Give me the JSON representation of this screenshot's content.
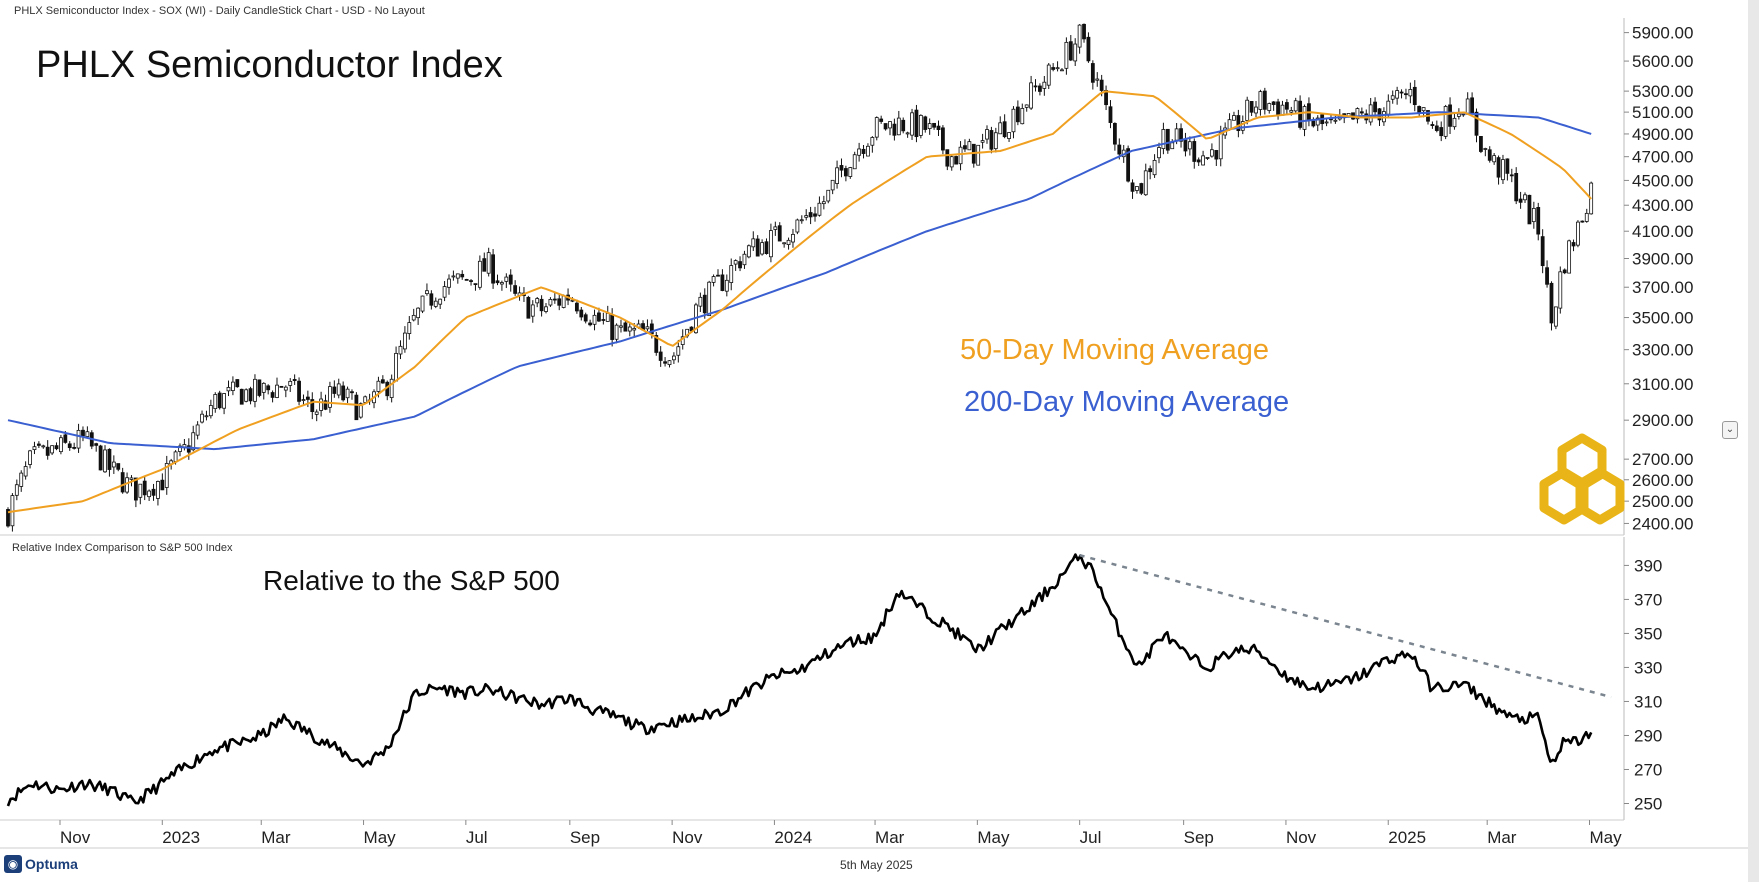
{
  "header": {
    "info": "PHLX Semiconductor Index - SOX (WI) - Daily CandleStick Chart - USD - No Layout",
    "title": "PHLX Semiconductor Index",
    "relative_panel_label": "Relative Index Comparison to S&P 500 Index",
    "relative_title": "Relative to the S&P 500"
  },
  "legend": {
    "ma50": "50-Day Moving Average",
    "ma200": "200-Day Moving Average"
  },
  "footer": {
    "date": "5th May 2025",
    "brand": "Optuma"
  },
  "colors": {
    "ma50": "#f0a020",
    "ma200": "#3a5fd0",
    "candles": "#111111",
    "relative": "#000000",
    "trendline": "#7a8590",
    "logo": "#e8b417"
  },
  "chart_data": [
    {
      "type": "candlestick",
      "title": "PHLX Semiconductor Index",
      "x_tick_labels": [
        "Nov",
        "2023",
        "Mar",
        "May",
        "Jul",
        "Sep",
        "Nov",
        "2024",
        "Mar",
        "May",
        "Jul",
        "Sep",
        "Nov",
        "2025",
        "Mar",
        "May"
      ],
      "y_tick_labels": [
        "5900.00",
        "5600.00",
        "5300.00",
        "5100.00",
        "4900.00",
        "4700.00",
        "4500.00",
        "4300.00",
        "4100.00",
        "3900.00",
        "3700.00",
        "3500.00",
        "3300.00",
        "3100.00",
        "2900.00",
        "2700.00",
        "2600.00",
        "2500.00",
        "2400.00"
      ],
      "y_scale": "log",
      "ylim": [
        2380,
        5950
      ],
      "series": [
        {
          "name": "SOX",
          "x": [
            "2022-10-01",
            "2022-10-15",
            "2022-11-01",
            "2022-11-15",
            "2022-12-01",
            "2022-12-15",
            "2023-01-01",
            "2023-01-15",
            "2023-02-01",
            "2023-02-15",
            "2023-03-01",
            "2023-03-15",
            "2023-04-01",
            "2023-04-15",
            "2023-05-01",
            "2023-05-15",
            "2023-06-01",
            "2023-06-15",
            "2023-07-01",
            "2023-07-15",
            "2023-08-01",
            "2023-08-15",
            "2023-09-01",
            "2023-09-15",
            "2023-10-01",
            "2023-10-15",
            "2023-11-01",
            "2023-11-15",
            "2023-12-01",
            "2023-12-15",
            "2024-01-01",
            "2024-01-15",
            "2024-02-01",
            "2024-02-15",
            "2024-03-01",
            "2024-03-15",
            "2024-04-01",
            "2024-04-15",
            "2024-05-01",
            "2024-05-15",
            "2024-06-01",
            "2024-06-15",
            "2024-07-01",
            "2024-07-10",
            "2024-07-20",
            "2024-08-05",
            "2024-08-20",
            "2024-09-01",
            "2024-09-15",
            "2024-10-01",
            "2024-10-15",
            "2024-11-01",
            "2024-11-15",
            "2024-12-01",
            "2024-12-15",
            "2025-01-01",
            "2025-01-15",
            "2025-01-27",
            "2025-02-01",
            "2025-02-15",
            "2025-03-01",
            "2025-03-15",
            "2025-04-01",
            "2025-04-08",
            "2025-04-15",
            "2025-04-25",
            "2025-05-02"
          ],
          "close": [
            2450,
            2700,
            2750,
            2800,
            2650,
            2550,
            2600,
            2750,
            3000,
            3050,
            3050,
            3100,
            2950,
            3050,
            2950,
            3100,
            3500,
            3700,
            3750,
            3850,
            3600,
            3550,
            3650,
            3500,
            3400,
            3400,
            3250,
            3550,
            3750,
            3950,
            4050,
            4150,
            4350,
            4700,
            4950,
            5000,
            4950,
            4700,
            4750,
            4950,
            5250,
            5500,
            5850,
            5450,
            4950,
            4400,
            4900,
            4800,
            4700,
            4950,
            5200,
            5150,
            5000,
            4950,
            5050,
            5150,
            5300,
            4950,
            5000,
            5200,
            4700,
            4500,
            4100,
            3450,
            3850,
            4150,
            4450
          ]
        },
        {
          "name": "50-Day Moving Average",
          "x": [
            "2022-10-01",
            "2022-11-15",
            "2023-01-01",
            "2023-02-15",
            "2023-04-01",
            "2023-05-01",
            "2023-06-01",
            "2023-07-01",
            "2023-08-15",
            "2023-10-01",
            "2023-11-01",
            "2023-12-01",
            "2024-01-01",
            "2024-02-15",
            "2024-04-01",
            "2024-05-15",
            "2024-06-15",
            "2024-07-15",
            "2024-08-15",
            "2024-09-15",
            "2024-10-15",
            "2024-11-15",
            "2024-12-15",
            "2025-01-15",
            "2025-02-15",
            "2025-03-15",
            "2025-04-15",
            "2025-05-02"
          ],
          "values": [
            2450,
            2500,
            2650,
            2850,
            3000,
            2980,
            3200,
            3500,
            3700,
            3500,
            3320,
            3550,
            3850,
            4300,
            4700,
            4750,
            4900,
            5300,
            5250,
            4850,
            5050,
            5100,
            5050,
            5050,
            5100,
            4900,
            4600,
            4350
          ]
        },
        {
          "name": "200-Day Moving Average",
          "x": [
            "2022-10-01",
            "2022-12-01",
            "2023-02-01",
            "2023-04-01",
            "2023-06-01",
            "2023-08-01",
            "2023-10-01",
            "2023-12-01",
            "2024-02-01",
            "2024-04-01",
            "2024-06-01",
            "2024-08-01",
            "2024-10-01",
            "2024-12-01",
            "2025-02-01",
            "2025-04-01",
            "2025-05-02"
          ],
          "values": [
            2900,
            2780,
            2750,
            2800,
            2920,
            3200,
            3350,
            3550,
            3800,
            4100,
            4350,
            4750,
            4950,
            5050,
            5100,
            5050,
            4900
          ]
        }
      ]
    },
    {
      "type": "line",
      "title": "Relative to the S&P 500",
      "x_tick_labels": [
        "Nov",
        "2023",
        "Mar",
        "May",
        "Jul",
        "Sep",
        "Nov",
        "2024",
        "Mar",
        "May",
        "Jul",
        "Sep",
        "Nov",
        "2025",
        "Mar",
        "May"
      ],
      "y_tick_labels": [
        "390",
        "370",
        "350",
        "330",
        "310",
        "290",
        "270",
        "250"
      ],
      "ylim": [
        245,
        402
      ],
      "series": [
        {
          "name": "Relative to the S&P 500",
          "x": [
            "2022-10-01",
            "2022-10-15",
            "2022-11-01",
            "2022-11-15",
            "2022-12-01",
            "2022-12-15",
            "2023-01-01",
            "2023-01-15",
            "2023-02-01",
            "2023-02-15",
            "2023-03-01",
            "2023-03-15",
            "2023-04-01",
            "2023-04-15",
            "2023-05-01",
            "2023-05-15",
            "2023-06-01",
            "2023-06-15",
            "2023-07-01",
            "2023-07-15",
            "2023-08-01",
            "2023-08-15",
            "2023-09-01",
            "2023-09-15",
            "2023-10-01",
            "2023-10-15",
            "2023-11-01",
            "2023-11-15",
            "2023-12-01",
            "2023-12-15",
            "2024-01-01",
            "2024-01-15",
            "2024-02-01",
            "2024-02-15",
            "2024-03-01",
            "2024-03-15",
            "2024-04-01",
            "2024-04-15",
            "2024-05-01",
            "2024-05-15",
            "2024-06-01",
            "2024-06-15",
            "2024-07-01",
            "2024-07-10",
            "2024-07-20",
            "2024-08-05",
            "2024-08-20",
            "2024-09-01",
            "2024-09-15",
            "2024-10-01",
            "2024-10-15",
            "2024-11-01",
            "2024-11-15",
            "2024-12-01",
            "2024-12-15",
            "2025-01-01",
            "2025-01-15",
            "2025-01-27",
            "2025-02-01",
            "2025-02-15",
            "2025-03-01",
            "2025-03-15",
            "2025-04-01",
            "2025-04-08",
            "2025-04-15",
            "2025-04-25",
            "2025-05-02"
          ],
          "values": [
            252,
            262,
            258,
            262,
            258,
            250,
            262,
            272,
            282,
            285,
            290,
            300,
            290,
            282,
            273,
            282,
            315,
            318,
            315,
            317,
            312,
            308,
            312,
            305,
            300,
            294,
            298,
            300,
            305,
            315,
            325,
            328,
            338,
            345,
            348,
            375,
            362,
            353,
            340,
            352,
            365,
            378,
            396,
            385,
            360,
            330,
            350,
            338,
            330,
            340,
            340,
            325,
            318,
            320,
            325,
            335,
            338,
            318,
            318,
            320,
            310,
            300,
            300,
            272,
            285,
            287,
            292
          ]
        },
        {
          "name": "Trendline",
          "x": [
            "2024-07-01",
            "2025-05-02"
          ],
          "values": [
            396,
            312
          ]
        }
      ]
    }
  ]
}
